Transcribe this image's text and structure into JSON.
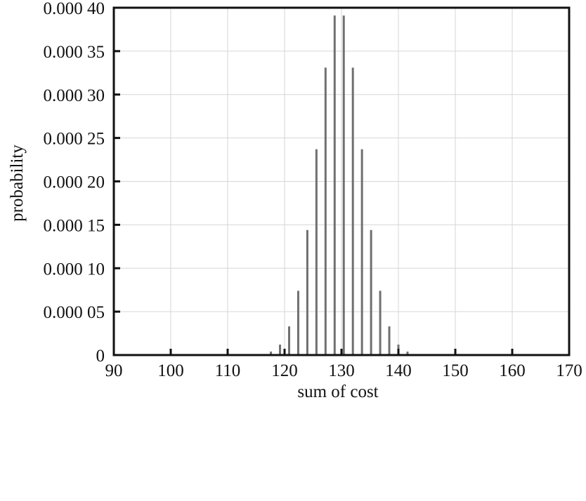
{
  "chart_data": {
    "type": "bar",
    "title": "",
    "xlabel": "sum of cost",
    "ylabel": "probability",
    "xlim": [
      90,
      170
    ],
    "ylim": [
      0,
      0.0004
    ],
    "grid": true,
    "x_ticks": [
      {
        "value": 90,
        "label": "90"
      },
      {
        "value": 100,
        "label": "100"
      },
      {
        "value": 110,
        "label": "110"
      },
      {
        "value": 120,
        "label": "120"
      },
      {
        "value": 130,
        "label": "130"
      },
      {
        "value": 140,
        "label": "140"
      },
      {
        "value": 150,
        "label": "150"
      },
      {
        "value": 160,
        "label": "160"
      },
      {
        "value": 170,
        "label": "170"
      }
    ],
    "y_ticks": [
      {
        "value": 0,
        "label": "0"
      },
      {
        "value": 5e-05,
        "label": "0.000 05"
      },
      {
        "value": 0.0001,
        "label": "0.000 10"
      },
      {
        "value": 0.00015,
        "label": "0.000 15"
      },
      {
        "value": 0.0002,
        "label": "0.000 20"
      },
      {
        "value": 0.00025,
        "label": "0.000 25"
      },
      {
        "value": 0.0003,
        "label": "0.000 30"
      },
      {
        "value": 0.00035,
        "label": "0.000 35"
      },
      {
        "value": 0.0004,
        "label": "0.000 40"
      }
    ],
    "bar_color": "#707070",
    "x": [
      116,
      117.6,
      119.2,
      120.8,
      122.4,
      124,
      125.6,
      127.2,
      128.8,
      130.4,
      132,
      133.6,
      135.2,
      136.8,
      138.4,
      140,
      141.6,
      143.2
    ],
    "values": [
      1e-06,
      4e-06,
      1.2e-05,
      3.3e-05,
      7.4e-05,
      0.000144,
      0.000237,
      0.000331,
      0.000391,
      0.000391,
      0.000331,
      0.000237,
      0.000144,
      7.4e-05,
      3.3e-05,
      1.2e-05,
      4e-06,
      1e-06
    ]
  }
}
